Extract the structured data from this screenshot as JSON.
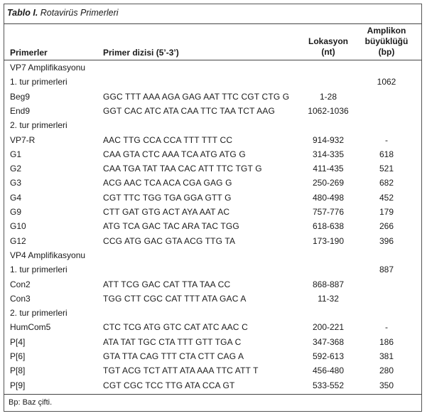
{
  "caption": {
    "label": "Tablo I.",
    "title": "Rotavirüs Primerleri"
  },
  "headers": {
    "primerler": "Primerler",
    "dizi": "Primer dizisi (5’-3’)",
    "lokasyon_1": "Lokasyon",
    "lokasyon_2": "(nt)",
    "amplikon_1": "Amplikon",
    "amplikon_2": "büyüklüğü",
    "amplikon_3": "(bp)"
  },
  "rows": [
    [
      "VP7 Amplifikasyonu",
      "",
      "",
      ""
    ],
    [
      "1. tur primerleri",
      "",
      "",
      "1062"
    ],
    [
      "Beg9",
      "GGC TTT AAA AGA GAG AAT TTC CGT CTG G",
      "1-28",
      ""
    ],
    [
      "End9",
      "GGT CAC ATC ATA CAA TTC TAA TCT AAG",
      "1062-1036",
      ""
    ],
    [
      "2. tur primerleri",
      "",
      "",
      ""
    ],
    [
      "VP7-R",
      "AAC TTG CCA CCA TTT TTT CC",
      "914-932",
      "-"
    ],
    [
      "G1",
      "CAA GTA CTC AAA TCA ATG ATG G",
      "314-335",
      "618"
    ],
    [
      "G2",
      "CAA TGA TAT TAA CAC ATT TTC TGT G",
      "411-435",
      "521"
    ],
    [
      "G3",
      "ACG AAC TCA ACA CGA GAG G",
      "250-269",
      "682"
    ],
    [
      "G4",
      "CGT TTC TGG TGA GGA GTT G",
      "480-498",
      "452"
    ],
    [
      "G9",
      "CTT GAT GTG ACT AYA AAT AC",
      "757-776",
      "179"
    ],
    [
      "G10",
      "ATG TCA GAC TAC ARA TAC TGG",
      "618-638",
      "266"
    ],
    [
      "G12",
      "CCG ATG GAC GTA ACG TTG TA",
      "173-190",
      "396"
    ],
    [
      "VP4 Amplifikasyonu",
      "",
      "",
      ""
    ],
    [
      "1. tur primerleri",
      "",
      "",
      "887"
    ],
    [
      "Con2",
      "ATT TCG GAC CAT TTA TAA CC",
      "868-887",
      ""
    ],
    [
      "Con3",
      "TGG CTT CGC CAT TTT ATA GAC A",
      "11-32",
      ""
    ],
    [
      "2. tur primerleri",
      "",
      "",
      ""
    ],
    [
      "HumCom5",
      "CTC TCG ATG GTC CAT ATC AAC C",
      "200-221",
      "-"
    ],
    [
      "P[4]",
      "ATA TAT TGC CTA TTT GTT TGA C",
      "347-368",
      "186"
    ],
    [
      "P[6]",
      "GTA TTA CAG TTT CTA CTT CAG A",
      "592-613",
      "381"
    ],
    [
      "P[8]",
      "TGT ACG TCT ATT ATA AAA TTC ATT T",
      "456-480",
      "280"
    ],
    [
      "P[9]",
      "CGT CGC TCC TTG ATA CCA GT",
      "533-552",
      "350"
    ]
  ],
  "footnote": "Bp: Baz çifti."
}
